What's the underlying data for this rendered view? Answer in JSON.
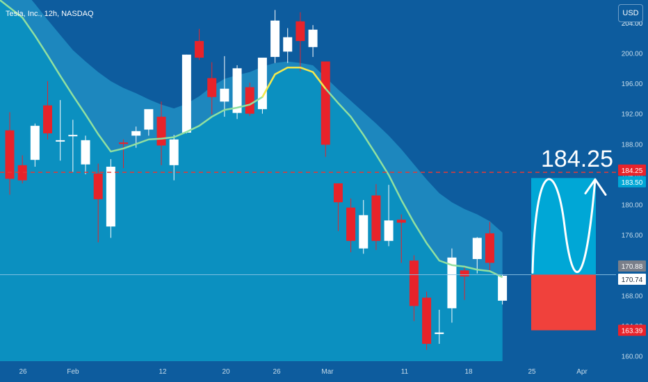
{
  "header": {
    "title": "Tesla, Inc., 12h, NASDAQ",
    "currency": "USD"
  },
  "colors": {
    "background": "#0d5c9e",
    "envelope_top": "#1d87be",
    "envelope_bottom": "#0b90c0",
    "ma_line": "#90e0a0",
    "ma_highlight": "#f5e84a",
    "up_candle": "#ffffff",
    "down_candle": "#e8232a",
    "target_line": "#e53935",
    "target_box": "#00a7d6",
    "stop_box": "#f0413c"
  },
  "chart_data": {
    "type": "candlestick",
    "symbol": "Tesla, Inc., 12h, NASDAQ",
    "currency": "USD",
    "ylim": [
      160,
      205
    ],
    "y_ticks": [
      "204.00",
      "200.00",
      "196.00",
      "192.00",
      "188.00",
      "184.00",
      "180.00",
      "176.00",
      "172.00",
      "168.00",
      "164.00",
      "160.00"
    ],
    "x_ticks": [
      "26",
      "Feb",
      "12",
      "20",
      "26",
      "Mar",
      "11",
      "18",
      "25",
      "Apr"
    ],
    "candles": [
      {
        "o": 189.8,
        "h": 192.2,
        "l": 181.3,
        "c": 183.4
      },
      {
        "o": 185.2,
        "h": 186.5,
        "l": 182.8,
        "c": 183.2
      },
      {
        "o": 185.9,
        "h": 190.7,
        "l": 185.0,
        "c": 190.4
      },
      {
        "o": 193.1,
        "h": 196.3,
        "l": 188.6,
        "c": 189.4
      },
      {
        "o": 188.5,
        "h": 193.8,
        "l": 185.8,
        "c": 188.5
      },
      {
        "o": 189.2,
        "h": 191.2,
        "l": 184.3,
        "c": 189.2
      },
      {
        "o": 185.3,
        "h": 189.1,
        "l": 184.0,
        "c": 188.5
      },
      {
        "o": 184.1,
        "h": 185.4,
        "l": 175.0,
        "c": 180.7
      },
      {
        "o": 177.1,
        "h": 186.0,
        "l": 175.6,
        "c": 185.0
      },
      {
        "o": 188.2,
        "h": 188.6,
        "l": 184.8,
        "c": 188.0
      },
      {
        "o": 189.1,
        "h": 190.3,
        "l": 187.5,
        "c": 189.7
      },
      {
        "o": 189.9,
        "h": 192.2,
        "l": 189.1,
        "c": 192.6
      },
      {
        "o": 191.6,
        "h": 193.6,
        "l": 185.2,
        "c": 187.8
      },
      {
        "o": 185.2,
        "h": 189.2,
        "l": 183.2,
        "c": 188.6
      },
      {
        "o": 189.5,
        "h": 199.8,
        "l": 189.4,
        "c": 199.8
      },
      {
        "o": 201.6,
        "h": 203.2,
        "l": 199.1,
        "c": 199.4
      },
      {
        "o": 196.7,
        "h": 198.8,
        "l": 191.9,
        "c": 194.2
      },
      {
        "o": 193.6,
        "h": 199.6,
        "l": 191.6,
        "c": 195.3
      },
      {
        "o": 192.1,
        "h": 198.4,
        "l": 191.3,
        "c": 198.0
      },
      {
        "o": 195.5,
        "h": 196.1,
        "l": 191.7,
        "c": 192.0
      },
      {
        "o": 192.6,
        "h": 199.0,
        "l": 192.0,
        "c": 199.4
      },
      {
        "o": 199.5,
        "h": 205.7,
        "l": 198.7,
        "c": 204.3
      },
      {
        "o": 200.2,
        "h": 203.3,
        "l": 198.7,
        "c": 202.1
      },
      {
        "o": 204.2,
        "h": 205.4,
        "l": 197.6,
        "c": 201.6
      },
      {
        "o": 200.8,
        "h": 203.7,
        "l": 199.5,
        "c": 203.1
      },
      {
        "o": 198.9,
        "h": 198.9,
        "l": 186.3,
        "c": 187.9
      },
      {
        "o": 182.8,
        "h": 182.8,
        "l": 176.5,
        "c": 180.3
      },
      {
        "o": 179.6,
        "h": 180.8,
        "l": 173.7,
        "c": 175.2
      },
      {
        "o": 174.2,
        "h": 180.6,
        "l": 173.5,
        "c": 178.6
      },
      {
        "o": 181.2,
        "h": 182.7,
        "l": 174.0,
        "c": 175.2
      },
      {
        "o": 175.2,
        "h": 182.6,
        "l": 174.5,
        "c": 177.9
      },
      {
        "o": 178.0,
        "h": 178.7,
        "l": 172.3,
        "c": 177.6
      },
      {
        "o": 172.6,
        "h": 173.3,
        "l": 164.6,
        "c": 166.6
      },
      {
        "o": 167.7,
        "h": 168.5,
        "l": 160.8,
        "c": 161.6
      },
      {
        "o": 162.9,
        "h": 166.1,
        "l": 161.6,
        "c": 163.1
      },
      {
        "o": 166.3,
        "h": 174.2,
        "l": 164.4,
        "c": 173.0
      },
      {
        "o": 171.3,
        "h": 171.9,
        "l": 167.4,
        "c": 170.5
      },
      {
        "o": 172.8,
        "h": 175.7,
        "l": 170.9,
        "c": 175.6
      },
      {
        "o": 176.2,
        "h": 177.7,
        "l": 171.1,
        "c": 172.3
      },
      {
        "o": 167.3,
        "h": 170.7,
        "l": 166.8,
        "c": 170.6
      }
    ],
    "moving_average": [
      207.0,
      204.7,
      202.3,
      199.7,
      197.0,
      194.4,
      191.9,
      189.3,
      187.0,
      187.4,
      188.0,
      188.6,
      188.7,
      188.9,
      189.6,
      190.4,
      191.6,
      192.5,
      192.8,
      193.2,
      194.2,
      197.2,
      198.1,
      198.1,
      197.5,
      195.3,
      193.4,
      191.6,
      189.2,
      186.6,
      183.9,
      180.6,
      177.6,
      174.9,
      172.6,
      172.0,
      171.8,
      171.4,
      171.2,
      170.4
    ],
    "envelope_upper": [
      210.0,
      208.5,
      206.5,
      204.4,
      202.4,
      200.4,
      198.9,
      197.5,
      196.3,
      195.4,
      194.7,
      193.9,
      193.2,
      192.7,
      193.3,
      194.3,
      195.6,
      196.6,
      197.1,
      197.5,
      198.2,
      198.7,
      198.9,
      198.7,
      198.4,
      196.8,
      195.2,
      193.7,
      192.2,
      190.7,
      189.1,
      187.3,
      185.3,
      183.3,
      181.5,
      180.3,
      179.4,
      178.7,
      177.8,
      176.3
    ],
    "envelope_lower": [
      160.0,
      160.0,
      160.0,
      160.0,
      160.0,
      160.0,
      160.0,
      160.0,
      160.0,
      160.0,
      160.0,
      160.0,
      160.0,
      160.0,
      160.0,
      160.0,
      160.0,
      160.0,
      160.0,
      160.0,
      160.0,
      160.0,
      160.0,
      160.0,
      160.0,
      160.0,
      160.0,
      160.0,
      160.0,
      160.0,
      160.0,
      160.0,
      160.0,
      160.0,
      160.0,
      160.0,
      160.0,
      160.0,
      160.0,
      160.0
    ],
    "target_level": 184.25,
    "current_price": 170.74,
    "labels": {
      "target": "184.25",
      "level_184_25": "184.25",
      "level_183_50": "183.50",
      "level_170_88": "170.88",
      "level_170_74": "170.74",
      "level_163_39": "163.39"
    },
    "position": {
      "entry": 170.74,
      "target_top": 183.5,
      "stop_bottom": 163.39
    },
    "grid": false
  }
}
